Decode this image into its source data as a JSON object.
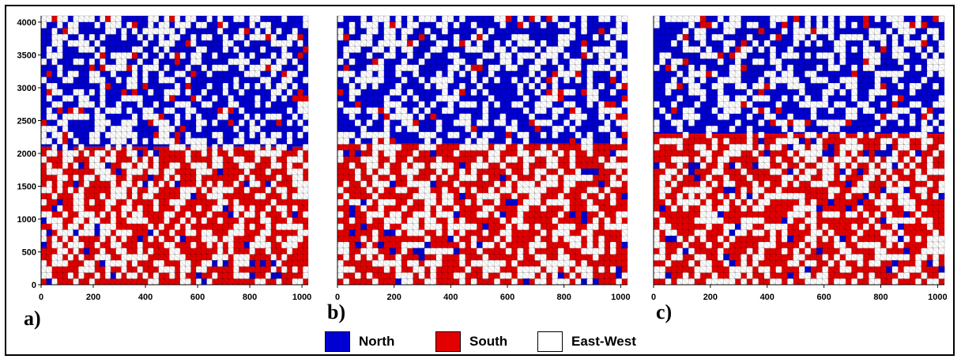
{
  "chart_data": [
    {
      "type": "heatmap",
      "panel_label": "a)",
      "xlim": [
        0,
        1024
      ],
      "ylim": [
        0,
        4096
      ],
      "x_ticks": [
        "0",
        "200",
        "400",
        "600",
        "800",
        "1000"
      ],
      "y_ticks": [
        "0",
        "500",
        "1000",
        "1500",
        "2000",
        "2500",
        "3000",
        "3500",
        "4000"
      ],
      "north_region_y": [
        2100,
        4096
      ],
      "south_region_y": [
        0,
        2100
      ],
      "seed": 11
    },
    {
      "type": "heatmap",
      "panel_label": "b)",
      "xlim": [
        0,
        1024
      ],
      "ylim": [
        0,
        4096
      ],
      "x_ticks": [
        "0",
        "200",
        "400",
        "600",
        "800",
        "1000"
      ],
      "y_ticks": [],
      "north_region_y": [
        2150,
        4096
      ],
      "south_region_y": [
        0,
        2150
      ],
      "seed": 23
    },
    {
      "type": "heatmap",
      "panel_label": "c)",
      "xlim": [
        0,
        1024
      ],
      "ylim": [
        0,
        4096
      ],
      "x_ticks": [
        "0",
        "200",
        "400",
        "600",
        "800",
        "1000"
      ],
      "y_ticks": [],
      "north_region_y": [
        2300,
        4096
      ],
      "south_region_y": [
        0,
        2300
      ],
      "seed": 37
    }
  ],
  "legend": [
    {
      "label": "North",
      "color": "#0000d2"
    },
    {
      "label": "South",
      "color": "#e30000"
    },
    {
      "label": "East-West",
      "color": "#ffffff"
    }
  ]
}
